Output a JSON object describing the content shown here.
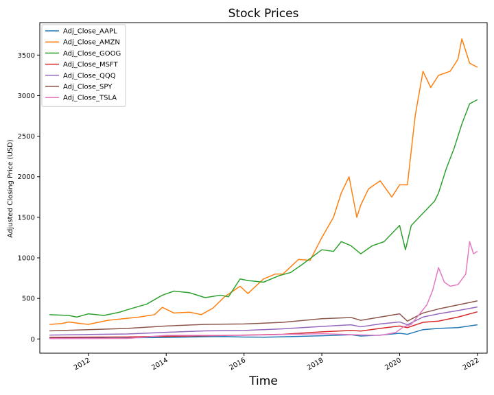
{
  "chart_data": {
    "type": "line",
    "title": "Stock Prices",
    "xlabel": "Time",
    "ylabel": "Adjusted Closing Price (USD)",
    "xlim": [
      2010.75,
      2022.25
    ],
    "ylim": [
      -175,
      3900
    ],
    "x_ticks": [
      2012,
      2014,
      2016,
      2018,
      2020,
      2022
    ],
    "x_tick_labels": [
      "2012",
      "2014",
      "2016",
      "2018",
      "2020",
      "2022"
    ],
    "y_ticks": [
      0,
      500,
      1000,
      1500,
      2000,
      2500,
      3000,
      3500
    ],
    "y_tick_labels": [
      "0",
      "500",
      "1000",
      "1500",
      "2000",
      "2500",
      "3000",
      "3500"
    ],
    "grid": false,
    "legend_position": "top-left",
    "series": [
      {
        "name": "Adj_Close_AAPL",
        "color": "#1f77b4",
        "x": [
          2011.0,
          2012.0,
          2012.7,
          2013.3,
          2014.0,
          2015.0,
          2015.5,
          2016.0,
          2016.5,
          2017.0,
          2018.0,
          2018.75,
          2019.0,
          2019.5,
          2020.0,
          2020.2,
          2020.6,
          2021.0,
          2021.5,
          2022.0
        ],
        "y": [
          10,
          13,
          20,
          16,
          18,
          28,
          30,
          24,
          22,
          27,
          40,
          52,
          36,
          48,
          70,
          58,
          115,
          130,
          140,
          175
        ]
      },
      {
        "name": "Adj_Close_AMZN",
        "color": "#ff7f0e",
        "x": [
          2011.0,
          2011.3,
          2011.5,
          2011.8,
          2012.0,
          2012.5,
          2012.9,
          2013.3,
          2013.7,
          2013.9,
          2014.2,
          2014.6,
          2014.9,
          2015.2,
          2015.5,
          2015.9,
          2016.1,
          2016.5,
          2016.8,
          2017.0,
          2017.4,
          2017.7,
          2018.0,
          2018.3,
          2018.5,
          2018.7,
          2018.9,
          2019.0,
          2019.2,
          2019.5,
          2019.8,
          2020.0,
          2020.2,
          2020.4,
          2020.6,
          2020.8,
          2021.0,
          2021.3,
          2021.5,
          2021.6,
          2021.8,
          2022.0
        ],
        "y": [
          180,
          190,
          210,
          190,
          180,
          230,
          250,
          270,
          300,
          390,
          320,
          330,
          300,
          380,
          520,
          650,
          560,
          740,
          800,
          800,
          980,
          970,
          1250,
          1500,
          1800,
          2000,
          1500,
          1650,
          1850,
          1950,
          1750,
          1900,
          1900,
          2750,
          3300,
          3100,
          3250,
          3300,
          3450,
          3700,
          3400,
          3350
        ]
      },
      {
        "name": "Adj_Close_GOOG",
        "color": "#2ca02c",
        "x": [
          2011.0,
          2011.5,
          2011.7,
          2012.0,
          2012.4,
          2012.8,
          2013.0,
          2013.5,
          2013.9,
          2014.2,
          2014.6,
          2015.0,
          2015.4,
          2015.6,
          2015.9,
          2016.1,
          2016.5,
          2016.9,
          2017.2,
          2017.5,
          2018.0,
          2018.3,
          2018.5,
          2018.75,
          2019.0,
          2019.3,
          2019.6,
          2020.0,
          2020.15,
          2020.3,
          2020.6,
          2020.9,
          2021.0,
          2021.2,
          2021.4,
          2021.6,
          2021.8,
          2022.0
        ],
        "y": [
          300,
          290,
          270,
          310,
          290,
          330,
          360,
          430,
          540,
          590,
          570,
          510,
          540,
          520,
          740,
          720,
          700,
          780,
          820,
          920,
          1100,
          1080,
          1200,
          1150,
          1050,
          1150,
          1200,
          1400,
          1100,
          1400,
          1550,
          1700,
          1800,
          2100,
          2350,
          2650,
          2900,
          2950
        ]
      },
      {
        "name": "Adj_Close_MSFT",
        "color": "#d62728",
        "x": [
          2011.0,
          2012.0,
          2013.0,
          2014.0,
          2015.0,
          2016.0,
          2017.0,
          2018.0,
          2018.75,
          2019.0,
          2019.5,
          2020.0,
          2020.2,
          2020.6,
          2021.0,
          2021.5,
          2022.0
        ],
        "y": [
          20,
          23,
          25,
          33,
          40,
          48,
          58,
          88,
          105,
          98,
          130,
          160,
          140,
          205,
          220,
          270,
          335
        ]
      },
      {
        "name": "Adj_Close_QQQ",
        "color": "#9467bd",
        "x": [
          2011.0,
          2012.0,
          2013.0,
          2014.0,
          2015.0,
          2016.0,
          2017.0,
          2018.0,
          2018.75,
          2019.0,
          2019.5,
          2020.0,
          2020.2,
          2020.6,
          2021.0,
          2021.5,
          2022.0
        ],
        "y": [
          48,
          55,
          62,
          82,
          100,
          105,
          125,
          155,
          175,
          150,
          185,
          210,
          175,
          270,
          310,
          350,
          395
        ]
      },
      {
        "name": "Adj_Close_SPY",
        "color": "#8c564b",
        "x": [
          2011.0,
          2012.0,
          2013.0,
          2014.0,
          2015.0,
          2016.0,
          2017.0,
          2018.0,
          2018.75,
          2019.0,
          2019.5,
          2020.0,
          2020.2,
          2020.6,
          2021.0,
          2021.5,
          2022.0
        ],
        "y": [
          100,
          115,
          130,
          160,
          180,
          185,
          205,
          250,
          265,
          230,
          270,
          310,
          220,
          320,
          370,
          420,
          470
        ]
      },
      {
        "name": "Adj_Close_TSLA",
        "color": "#e377c2",
        "x": [
          2011.0,
          2012.0,
          2013.0,
          2013.5,
          2014.0,
          2015.0,
          2016.0,
          2017.0,
          2018.0,
          2019.0,
          2019.5,
          2019.9,
          2020.1,
          2020.3,
          2020.5,
          2020.7,
          2020.85,
          2021.0,
          2021.15,
          2021.3,
          2021.5,
          2021.7,
          2021.8,
          2021.9,
          2022.0
        ],
        "y": [
          5,
          6,
          7,
          25,
          45,
          45,
          45,
          55,
          65,
          50,
          45,
          80,
          150,
          180,
          300,
          420,
          600,
          880,
          700,
          650,
          670,
          800,
          1200,
          1050,
          1080
        ]
      }
    ]
  }
}
